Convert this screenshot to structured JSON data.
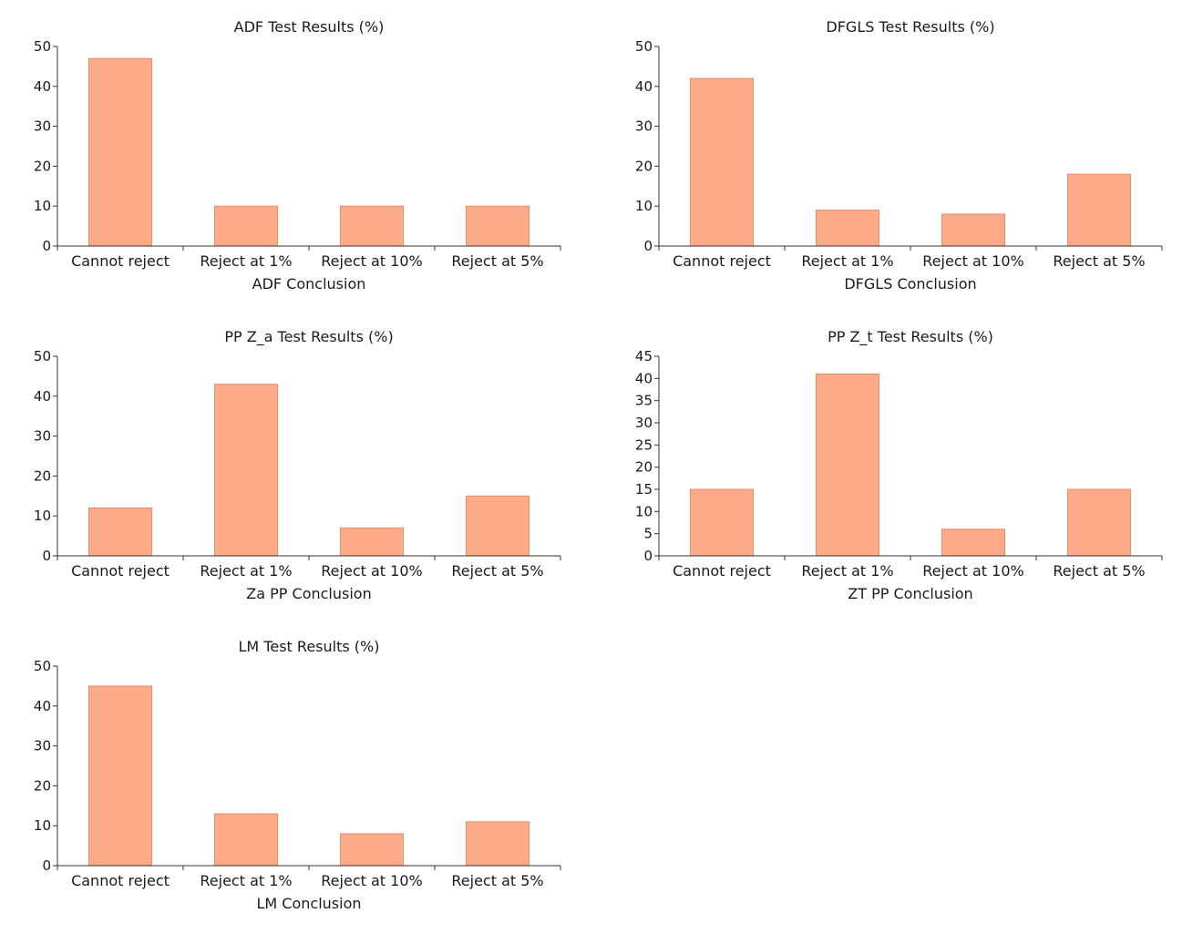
{
  "bar_color": "#fcaa88",
  "bar_edge_color": "#f08a6a",
  "axis_color": "#333333",
  "chart_data": [
    {
      "type": "bar",
      "title": "ADF Test Results (%)",
      "xlabel": "ADF Conclusion",
      "ylabel": "",
      "categories": [
        "Cannot reject",
        "Reject at 1%",
        "Reject at 10%",
        "Reject at 5%"
      ],
      "values": [
        47,
        10,
        10,
        10
      ],
      "ylim": [
        0,
        50
      ],
      "yticks": [
        0,
        10,
        20,
        30,
        40,
        50
      ]
    },
    {
      "type": "bar",
      "title": "DFGLS Test Results (%)",
      "xlabel": "DFGLS Conclusion",
      "ylabel": "",
      "categories": [
        "Cannot reject",
        "Reject at 1%",
        "Reject at 10%",
        "Reject at 5%"
      ],
      "values": [
        42,
        9,
        8,
        18
      ],
      "ylim": [
        0,
        50
      ],
      "yticks": [
        0,
        10,
        20,
        30,
        40,
        50
      ]
    },
    {
      "type": "bar",
      "title": "PP Z_a Test Results (%)",
      "xlabel": "Za PP Conclusion",
      "ylabel": "",
      "categories": [
        "Cannot reject",
        "Reject at 1%",
        "Reject at 10%",
        "Reject at 5%"
      ],
      "values": [
        12,
        43,
        7,
        15
      ],
      "ylim": [
        0,
        50
      ],
      "yticks": [
        0,
        10,
        20,
        30,
        40,
        50
      ]
    },
    {
      "type": "bar",
      "title": "PP Z_t Test Results (%)",
      "xlabel": "ZT PP Conclusion",
      "ylabel": "",
      "categories": [
        "Cannot reject",
        "Reject at 1%",
        "Reject at 10%",
        "Reject at 5%"
      ],
      "values": [
        15,
        41,
        6,
        15
      ],
      "ylim": [
        0,
        45
      ],
      "yticks": [
        0,
        5,
        10,
        15,
        20,
        25,
        30,
        35,
        40,
        45
      ]
    },
    {
      "type": "bar",
      "title": "LM Test Results (%)",
      "xlabel": "LM Conclusion",
      "ylabel": "",
      "categories": [
        "Cannot reject",
        "Reject at 1%",
        "Reject at 10%",
        "Reject at 5%"
      ],
      "values": [
        45,
        13,
        8,
        11
      ],
      "ylim": [
        0,
        50
      ],
      "yticks": [
        0,
        10,
        20,
        30,
        40,
        50
      ]
    }
  ]
}
